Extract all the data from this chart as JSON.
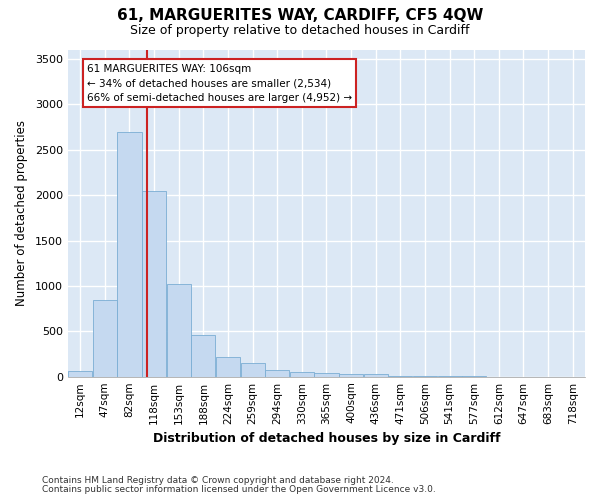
{
  "title": "61, MARGUERITES WAY, CARDIFF, CF5 4QW",
  "subtitle": "Size of property relative to detached houses in Cardiff",
  "xlabel": "Distribution of detached houses by size in Cardiff",
  "ylabel": "Number of detached properties",
  "categories": [
    "12sqm",
    "47sqm",
    "82sqm",
    "118sqm",
    "153sqm",
    "188sqm",
    "224sqm",
    "259sqm",
    "294sqm",
    "330sqm",
    "365sqm",
    "400sqm",
    "436sqm",
    "471sqm",
    "506sqm",
    "541sqm",
    "577sqm",
    "612sqm",
    "647sqm",
    "683sqm",
    "718sqm"
  ],
  "bar_values": [
    60,
    850,
    2700,
    2050,
    1020,
    460,
    220,
    155,
    75,
    55,
    45,
    35,
    25,
    10,
    3,
    2,
    2,
    1,
    1,
    1,
    0
  ],
  "bar_color": "#c5d9f0",
  "bar_edge_color": "#7aadd4",
  "fig_background": "#ffffff",
  "plot_background": "#dce8f5",
  "grid_color": "#ffffff",
  "vline_color": "#cc2222",
  "vline_x_index": 2.72,
  "annotation_title": "61 MARGUERITES WAY: 106sqm",
  "annotation_line2": "← 34% of detached houses are smaller (2,534)",
  "annotation_line3": "66% of semi-detached houses are larger (4,952) →",
  "annotation_box_facecolor": "#ffffff",
  "annotation_box_edgecolor": "#cc2222",
  "ylim": [
    0,
    3600
  ],
  "yticks": [
    0,
    500,
    1000,
    1500,
    2000,
    2500,
    3000,
    3500
  ],
  "footnote1": "Contains HM Land Registry data © Crown copyright and database right 2024.",
  "footnote2": "Contains public sector information licensed under the Open Government Licence v3.0."
}
